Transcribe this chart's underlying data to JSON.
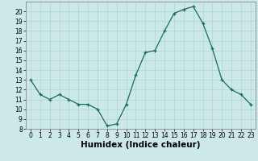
{
  "xlabel": "Humidex (Indice chaleur)",
  "x": [
    0,
    1,
    2,
    3,
    4,
    5,
    6,
    7,
    8,
    9,
    10,
    11,
    12,
    13,
    14,
    15,
    16,
    17,
    18,
    19,
    20,
    21,
    22,
    23
  ],
  "y": [
    13,
    11.5,
    11,
    11.5,
    11,
    10.5,
    10.5,
    10,
    8.3,
    8.5,
    10.5,
    13.5,
    15.8,
    16.0,
    18.0,
    19.8,
    20.2,
    20.5,
    18.8,
    16.2,
    13.0,
    12.0,
    11.5,
    10.5
  ],
  "line_color": "#1a6b5a",
  "marker": "+",
  "marker_size": 3,
  "background_color": "#cce8e8",
  "grid_color": "#aad4d4",
  "ylim": [
    8,
    21
  ],
  "xlim": [
    -0.5,
    23.5
  ],
  "yticks": [
    8,
    9,
    10,
    11,
    12,
    13,
    14,
    15,
    16,
    17,
    18,
    19,
    20
  ],
  "xticks": [
    0,
    1,
    2,
    3,
    4,
    5,
    6,
    7,
    8,
    9,
    10,
    11,
    12,
    13,
    14,
    15,
    16,
    17,
    18,
    19,
    20,
    21,
    22,
    23
  ],
  "tick_fontsize": 5.5,
  "label_fontsize": 7.5,
  "spine_color": "#888888"
}
